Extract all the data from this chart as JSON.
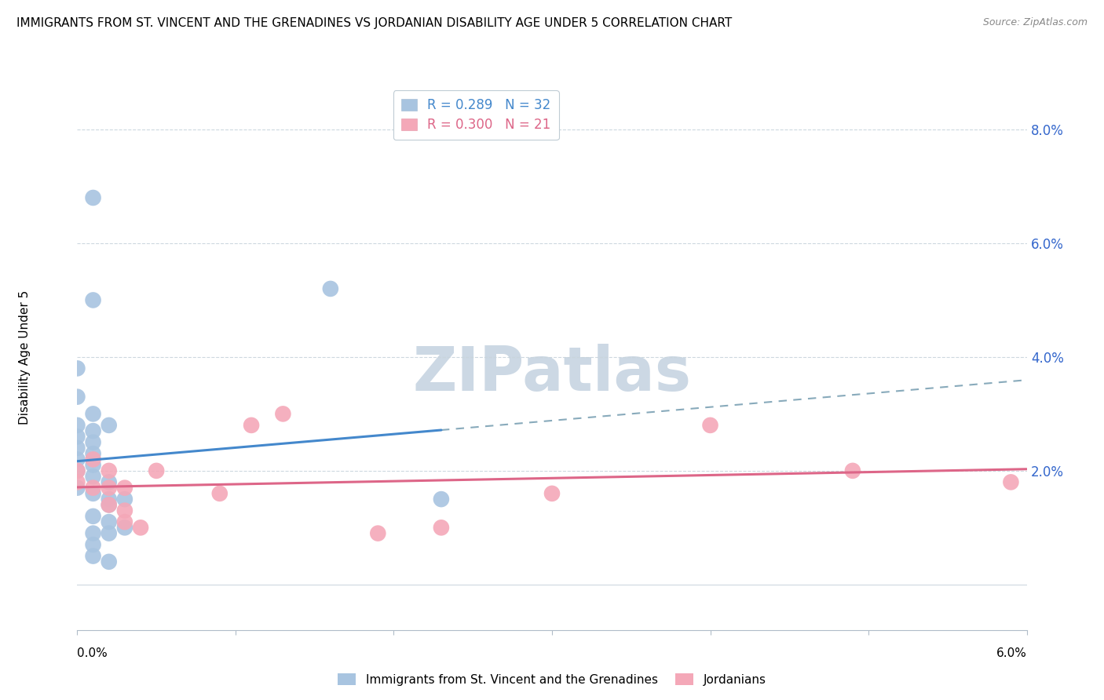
{
  "title": "IMMIGRANTS FROM ST. VINCENT AND THE GRENADINES VS JORDANIAN DISABILITY AGE UNDER 5 CORRELATION CHART",
  "source": "Source: ZipAtlas.com",
  "ylabel": "Disability Age Under 5",
  "ylabel_right_ticks": [
    "8.0%",
    "6.0%",
    "4.0%",
    "2.0%"
  ],
  "ylabel_right_vals": [
    0.08,
    0.06,
    0.04,
    0.02
  ],
  "xlim": [
    0.0,
    0.06
  ],
  "ylim": [
    -0.008,
    0.088
  ],
  "legend_blue_r": "0.289",
  "legend_blue_n": "32",
  "legend_pink_r": "0.300",
  "legend_pink_n": "21",
  "blue_color": "#a8c4e0",
  "pink_color": "#f4a8b8",
  "blue_line_color": "#4488cc",
  "pink_line_color": "#dd6688",
  "blue_dashed_color": "#88aabb",
  "blue_scatter": [
    [
      0.001,
      0.068
    ],
    [
      0.001,
      0.05
    ],
    [
      0.0,
      0.038
    ],
    [
      0.0,
      0.033
    ],
    [
      0.001,
      0.03
    ],
    [
      0.0,
      0.028
    ],
    [
      0.002,
      0.028
    ],
    [
      0.001,
      0.027
    ],
    [
      0.0,
      0.026
    ],
    [
      0.001,
      0.025
    ],
    [
      0.0,
      0.024
    ],
    [
      0.001,
      0.023
    ],
    [
      0.0,
      0.022
    ],
    [
      0.001,
      0.021
    ],
    [
      0.0,
      0.02
    ],
    [
      0.001,
      0.019
    ],
    [
      0.002,
      0.018
    ],
    [
      0.0,
      0.017
    ],
    [
      0.001,
      0.016
    ],
    [
      0.002,
      0.015
    ],
    [
      0.003,
      0.015
    ],
    [
      0.002,
      0.014
    ],
    [
      0.001,
      0.012
    ],
    [
      0.002,
      0.011
    ],
    [
      0.003,
      0.01
    ],
    [
      0.001,
      0.009
    ],
    [
      0.002,
      0.009
    ],
    [
      0.001,
      0.007
    ],
    [
      0.001,
      0.005
    ],
    [
      0.002,
      0.004
    ],
    [
      0.016,
      0.052
    ],
    [
      0.023,
      0.015
    ]
  ],
  "pink_scatter": [
    [
      0.0,
      0.02
    ],
    [
      0.0,
      0.018
    ],
    [
      0.001,
      0.022
    ],
    [
      0.001,
      0.017
    ],
    [
      0.002,
      0.02
    ],
    [
      0.002,
      0.017
    ],
    [
      0.002,
      0.014
    ],
    [
      0.003,
      0.017
    ],
    [
      0.003,
      0.013
    ],
    [
      0.003,
      0.011
    ],
    [
      0.004,
      0.01
    ],
    [
      0.005,
      0.02
    ],
    [
      0.009,
      0.016
    ],
    [
      0.011,
      0.028
    ],
    [
      0.013,
      0.03
    ],
    [
      0.019,
      0.009
    ],
    [
      0.023,
      0.01
    ],
    [
      0.03,
      0.016
    ],
    [
      0.04,
      0.028
    ],
    [
      0.049,
      0.02
    ],
    [
      0.059,
      0.018
    ]
  ],
  "background_color": "#ffffff",
  "grid_color": "#c8d4dc",
  "watermark_text": "ZIPatlas",
  "watermark_color": "#ccd8e4",
  "blue_line_x_end": 0.023,
  "pink_line_x_end": 0.06
}
